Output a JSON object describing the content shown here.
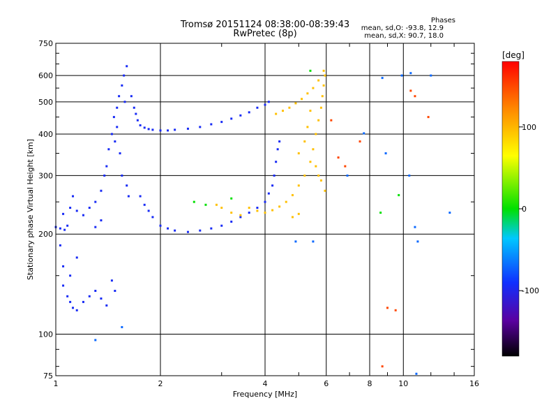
{
  "header": {
    "title_line1": "Tromsø 20151124 08:38:00-08:39:43",
    "title_line2": "RwPretec (8p)"
  },
  "stats": {
    "heading": "Phases",
    "line1": "mean, sd,O: -93.8, 12.9",
    "line2": "mean, sd,X:  90.7, 18.0"
  },
  "colors": {
    "grid": "#000000",
    "dominant_o_mode": "#2a3de0",
    "x_mode": "#f0e020"
  },
  "chart_data": {
    "type": "scatter",
    "xlabel": "Frequency [MHz]",
    "ylabel": "Stationary phase Virtual Height [km]",
    "xscale": "log",
    "yscale": "log",
    "xlim": [
      1,
      16
    ],
    "ylim": [
      75,
      750
    ],
    "xticks": [
      1,
      2,
      4,
      6,
      8,
      10,
      16
    ],
    "xtick_labels": [
      "1",
      "2",
      "4",
      "6",
      "8",
      "10",
      "16"
    ],
    "yticks": [
      75,
      100,
      200,
      300,
      400,
      500,
      600,
      750
    ],
    "ytick_labels": [
      "75",
      "100",
      "200",
      "300",
      "400",
      "500",
      "600",
      "750"
    ],
    "grid": true,
    "colorbar": {
      "label": "[deg]",
      "range": [
        -180,
        180
      ],
      "ticks": [
        100,
        0,
        -100
      ],
      "tick_labels": [
        "100",
        "0",
        "-100"
      ]
    },
    "series": [
      {
        "color_phase": -95,
        "points": [
          [
            1.0,
            210
          ],
          [
            1.03,
            208
          ],
          [
            1.06,
            206
          ],
          [
            1.08,
            212
          ],
          [
            1.05,
            230
          ],
          [
            1.1,
            240
          ],
          [
            1.12,
            260
          ],
          [
            1.15,
            235
          ],
          [
            1.2,
            228
          ],
          [
            1.25,
            240
          ],
          [
            1.3,
            250
          ],
          [
            1.35,
            270
          ],
          [
            1.38,
            300
          ],
          [
            1.4,
            320
          ],
          [
            1.42,
            360
          ],
          [
            1.45,
            400
          ],
          [
            1.47,
            450
          ],
          [
            1.5,
            480
          ],
          [
            1.52,
            520
          ],
          [
            1.55,
            560
          ],
          [
            1.57,
            600
          ],
          [
            1.6,
            640
          ],
          [
            1.48,
            380
          ],
          [
            1.5,
            420
          ],
          [
            1.53,
            350
          ],
          [
            1.55,
            300
          ],
          [
            1.6,
            280
          ],
          [
            1.62,
            260
          ],
          [
            1.58,
            500
          ],
          [
            1.65,
            520
          ],
          [
            1.68,
            480
          ],
          [
            1.7,
            460
          ],
          [
            1.72,
            440
          ],
          [
            1.75,
            425
          ],
          [
            1.8,
            418
          ],
          [
            1.85,
            414
          ],
          [
            1.9,
            412
          ],
          [
            2.0,
            410
          ],
          [
            2.1,
            410
          ],
          [
            2.2,
            412
          ],
          [
            2.4,
            415
          ],
          [
            2.6,
            420
          ],
          [
            2.8,
            428
          ],
          [
            3.0,
            435
          ],
          [
            3.2,
            445
          ],
          [
            3.4,
            455
          ],
          [
            3.6,
            465
          ],
          [
            3.8,
            480
          ],
          [
            4.0,
            490
          ],
          [
            4.1,
            500
          ],
          [
            1.75,
            260
          ],
          [
            1.8,
            245
          ],
          [
            1.85,
            235
          ],
          [
            1.9,
            225
          ],
          [
            2.0,
            212
          ],
          [
            2.1,
            208
          ],
          [
            2.2,
            205
          ],
          [
            2.4,
            203
          ],
          [
            2.6,
            205
          ],
          [
            2.8,
            208
          ],
          [
            3.0,
            212
          ],
          [
            3.2,
            218
          ],
          [
            3.4,
            225
          ],
          [
            3.6,
            232
          ],
          [
            3.8,
            240
          ],
          [
            4.0,
            250
          ],
          [
            4.1,
            265
          ],
          [
            4.2,
            280
          ],
          [
            4.25,
            300
          ],
          [
            4.3,
            330
          ],
          [
            4.35,
            360
          ],
          [
            4.4,
            380
          ],
          [
            1.05,
            140
          ],
          [
            1.08,
            130
          ],
          [
            1.1,
            125
          ],
          [
            1.12,
            120
          ],
          [
            1.15,
            118
          ],
          [
            1.2,
            125
          ],
          [
            1.25,
            130
          ],
          [
            1.3,
            135
          ],
          [
            1.35,
            128
          ],
          [
            1.4,
            122
          ],
          [
            1.05,
            160
          ],
          [
            1.1,
            150
          ],
          [
            1.15,
            170
          ],
          [
            1.03,
            185
          ],
          [
            1.45,
            145
          ],
          [
            1.48,
            135
          ],
          [
            1.3,
            210
          ],
          [
            1.35,
            220
          ]
        ]
      },
      {
        "color_phase": 95,
        "points": [
          [
            3.6,
            240
          ],
          [
            3.8,
            235
          ],
          [
            4.0,
            232
          ],
          [
            4.2,
            236
          ],
          [
            4.4,
            242
          ],
          [
            4.6,
            250
          ],
          [
            4.8,
            262
          ],
          [
            5.0,
            280
          ],
          [
            5.2,
            300
          ],
          [
            5.4,
            330
          ],
          [
            5.5,
            360
          ],
          [
            5.6,
            400
          ],
          [
            5.7,
            440
          ],
          [
            5.8,
            480
          ],
          [
            5.85,
            520
          ],
          [
            5.9,
            560
          ],
          [
            5.95,
            600
          ],
          [
            5.9,
            620
          ],
          [
            4.3,
            460
          ],
          [
            4.5,
            470
          ],
          [
            4.7,
            480
          ],
          [
            4.9,
            495
          ],
          [
            5.1,
            510
          ],
          [
            5.3,
            530
          ],
          [
            5.5,
            550
          ],
          [
            5.7,
            580
          ],
          [
            2.9,
            245
          ],
          [
            3.0,
            240
          ],
          [
            3.2,
            232
          ],
          [
            3.4,
            228
          ],
          [
            5.0,
            350
          ],
          [
            5.2,
            380
          ],
          [
            5.3,
            420
          ],
          [
            5.4,
            470
          ],
          [
            5.6,
            320
          ],
          [
            5.7,
            300
          ],
          [
            5.8,
            290
          ],
          [
            5.95,
            270
          ],
          [
            5.0,
            230
          ],
          [
            4.8,
            225
          ]
        ]
      },
      {
        "color_phase": 0,
        "points": [
          [
            2.5,
            250
          ],
          [
            2.7,
            245
          ],
          [
            3.2,
            256
          ],
          [
            8.6,
            232
          ],
          [
            9.7,
            262
          ],
          [
            5.4,
            620
          ]
        ]
      },
      {
        "color_phase": 150,
        "points": [
          [
            10.5,
            540
          ],
          [
            10.8,
            520
          ],
          [
            11.8,
            450
          ],
          [
            6.5,
            340
          ],
          [
            6.8,
            320
          ],
          [
            9.0,
            120
          ],
          [
            9.5,
            118
          ],
          [
            6.2,
            440
          ],
          [
            7.5,
            380
          ],
          [
            8.7,
            80
          ]
        ]
      },
      {
        "color_phase": -70,
        "points": [
          [
            8.7,
            590
          ],
          [
            9.9,
            600
          ],
          [
            10.5,
            610
          ],
          [
            12.0,
            600
          ],
          [
            8.9,
            350
          ],
          [
            10.4,
            300
          ],
          [
            10.8,
            210
          ],
          [
            11.0,
            190
          ],
          [
            7.7,
            402
          ],
          [
            10.9,
            76
          ],
          [
            13.6,
            232
          ],
          [
            6.9,
            300
          ],
          [
            5.5,
            190
          ],
          [
            4.9,
            190
          ],
          [
            1.3,
            96
          ],
          [
            1.55,
            105
          ]
        ]
      }
    ]
  }
}
